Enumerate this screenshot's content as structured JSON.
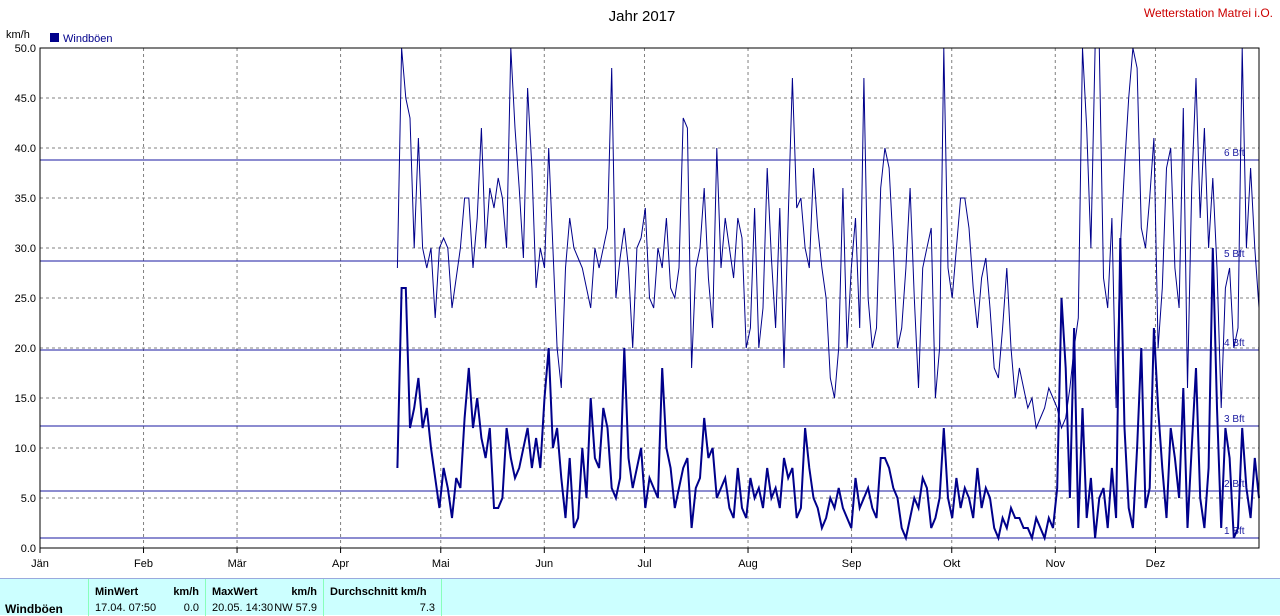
{
  "chart_data": {
    "type": "line",
    "title": "Jahr 2017",
    "station": "Wetterstation Matrei i.O.",
    "ylabel": "km/h",
    "ylim": [
      0,
      50
    ],
    "yticks": [
      "0.0",
      "5.0",
      "10.0",
      "15.0",
      "20.0",
      "25.0",
      "30.0",
      "35.0",
      "40.0",
      "45.0",
      "50.0"
    ],
    "months": [
      "Jän",
      "Feb",
      "Mär",
      "Apr",
      "Mai",
      "Jun",
      "Jul",
      "Aug",
      "Sep",
      "Okt",
      "Nov",
      "Dez"
    ],
    "legend": "Windböen",
    "beaufort": [
      {
        "label": "1 Bft",
        "value": 1.0
      },
      {
        "label": "2 Bft",
        "value": 5.7
      },
      {
        "label": "3 Bft",
        "value": 12.2
      },
      {
        "label": "4 Bft",
        "value": 19.8
      },
      {
        "label": "5 Bft",
        "value": 28.7
      },
      {
        "label": "6 Bft",
        "value": 38.8
      }
    ],
    "data_start_day": 107,
    "max_series": [
      28,
      50,
      45,
      43,
      30,
      41,
      30,
      28,
      30,
      23,
      30,
      31,
      30,
      24,
      27,
      30,
      35,
      35,
      28,
      33,
      42,
      30,
      36,
      34,
      37,
      35,
      30,
      50,
      42,
      36,
      29,
      46,
      38,
      26,
      30,
      28,
      40,
      30,
      20,
      16,
      28,
      33,
      30,
      29,
      28,
      26,
      24,
      30,
      28,
      30,
      32,
      48,
      25,
      29,
      32,
      28,
      20,
      30,
      31,
      34,
      25,
      24,
      30,
      28,
      33,
      26,
      25,
      28,
      43,
      42,
      18,
      28,
      30,
      36,
      27,
      22,
      40,
      28,
      33,
      30,
      27,
      33,
      31,
      20,
      22,
      34,
      20,
      24,
      38,
      29,
      22,
      34,
      18,
      33,
      47,
      34,
      35,
      30,
      28,
      38,
      32,
      28,
      25,
      17,
      15,
      20,
      36,
      20,
      28,
      33,
      22,
      47,
      25,
      20,
      22,
      36,
      40,
      38,
      30,
      20,
      22,
      28,
      36,
      25,
      16,
      28,
      30,
      32,
      15,
      20,
      50,
      28,
      25,
      30,
      35,
      35,
      32,
      26,
      22,
      27,
      29,
      24,
      18,
      17,
      22,
      28,
      20,
      15,
      18,
      16,
      14,
      15,
      12,
      13,
      14,
      16,
      15,
      14,
      12,
      13,
      16,
      20,
      23,
      50,
      42,
      30,
      50,
      55,
      27,
      24,
      33,
      14,
      30,
      38,
      45,
      50,
      48,
      32,
      30,
      35,
      41,
      20,
      26,
      38,
      40,
      28,
      24,
      44,
      16,
      36,
      47,
      33,
      42,
      30,
      37,
      28,
      14,
      26,
      28,
      20,
      22,
      50,
      30,
      38,
      30,
      24
    ],
    "mean_series": [
      8,
      26,
      26,
      12,
      14,
      17,
      12,
      14,
      10,
      7,
      4,
      8,
      6,
      3,
      7,
      6,
      13,
      18,
      12,
      15,
      11,
      9,
      12,
      4,
      4,
      5,
      12,
      9,
      7,
      8,
      10,
      12,
      8,
      11,
      8,
      15,
      20,
      10,
      12,
      7,
      3,
      9,
      2,
      3,
      10,
      5,
      15,
      9,
      8,
      14,
      12,
      6,
      5,
      7,
      20,
      9,
      6,
      8,
      10,
      4,
      7,
      6,
      5,
      18,
      10,
      8,
      4,
      6,
      8,
      9,
      2,
      6,
      7,
      13,
      9,
      10,
      5,
      6,
      7,
      4,
      3,
      8,
      4,
      3,
      7,
      5,
      6,
      4,
      8,
      5,
      6,
      4,
      9,
      7,
      8,
      3,
      4,
      12,
      8,
      5,
      4,
      2,
      3,
      5,
      4,
      6,
      4,
      3,
      2,
      7,
      4,
      5,
      6,
      4,
      3,
      9,
      9,
      8,
      6,
      5,
      2,
      1,
      3,
      5,
      4,
      7,
      6,
      2,
      3,
      5,
      12,
      5,
      3,
      7,
      4,
      6,
      5,
      3,
      8,
      4,
      6,
      5,
      2,
      1,
      3,
      2,
      4,
      3,
      3,
      2,
      2,
      1,
      3,
      2,
      1,
      3,
      2,
      6,
      25,
      18,
      5,
      22,
      2,
      14,
      3,
      7,
      1,
      5,
      6,
      2,
      8,
      3,
      31,
      12,
      4,
      2,
      10,
      20,
      4,
      6,
      22,
      14,
      8,
      3,
      12,
      9,
      5,
      16,
      2,
      10,
      18,
      5,
      2,
      8,
      30,
      14,
      2,
      12,
      9,
      1,
      2,
      12,
      6,
      3,
      9,
      5
    ],
    "min_series": [
      0,
      0,
      0,
      0,
      0,
      0,
      0,
      0,
      0,
      0,
      0,
      0,
      0,
      0,
      0,
      0,
      0,
      0,
      0,
      0,
      0,
      0,
      0,
      0,
      0,
      0,
      0,
      0,
      0,
      0,
      0,
      0,
      0,
      0,
      0,
      0,
      0,
      0,
      0,
      0,
      0,
      0,
      0,
      0,
      0,
      0,
      0,
      0,
      0,
      0,
      0,
      0,
      0,
      0,
      0,
      0,
      0,
      0,
      0,
      0,
      0,
      0,
      0,
      0,
      0,
      0,
      0,
      0,
      0,
      0,
      0,
      0,
      0,
      0,
      0,
      0,
      0,
      0,
      0,
      0,
      0,
      0,
      0,
      0,
      0,
      0,
      0,
      0,
      0,
      0,
      0,
      0,
      0,
      0,
      0,
      0,
      0,
      0,
      0,
      0,
      0,
      0,
      0,
      0,
      0,
      0,
      0,
      0,
      0,
      0,
      0,
      0,
      0,
      0,
      0,
      0,
      0,
      0,
      0,
      0,
      0,
      0,
      0,
      0,
      0,
      0,
      0,
      0,
      0,
      0,
      0,
      0,
      0,
      0,
      0,
      0,
      0,
      0,
      0,
      0,
      0,
      0,
      0,
      0,
      0,
      0,
      0,
      0,
      0,
      0,
      0,
      0,
      0,
      0,
      0,
      0,
      0,
      0,
      0,
      0,
      0,
      0,
      0,
      0,
      0,
      0,
      0,
      0,
      0,
      0,
      0,
      0,
      0,
      0,
      0,
      0,
      0,
      0,
      0,
      0,
      0,
      0,
      0,
      0,
      0,
      0,
      0,
      0,
      0,
      0,
      0,
      0,
      0,
      0,
      0,
      0,
      0,
      0,
      0,
      0,
      0,
      0,
      0,
      0,
      0,
      0
    ],
    "colors": {
      "series": "#00008b",
      "grid": "#808080",
      "bft": "#1a1aa0",
      "title_right": "#cc0000",
      "stats_bg": "#ccffff"
    }
  },
  "stats": {
    "row_label": "Windböen",
    "min_header": "MinWert",
    "min_unit": "km/h",
    "min_time": "17.04.  07:50",
    "min_value": "0.0",
    "max_header": "MaxWert",
    "max_unit": "km/h",
    "max_time": "20.05.  14:30",
    "max_dir_value": "NW 57.9",
    "avg_header": "Durchschnitt km/h",
    "avg_value": "7.3"
  }
}
